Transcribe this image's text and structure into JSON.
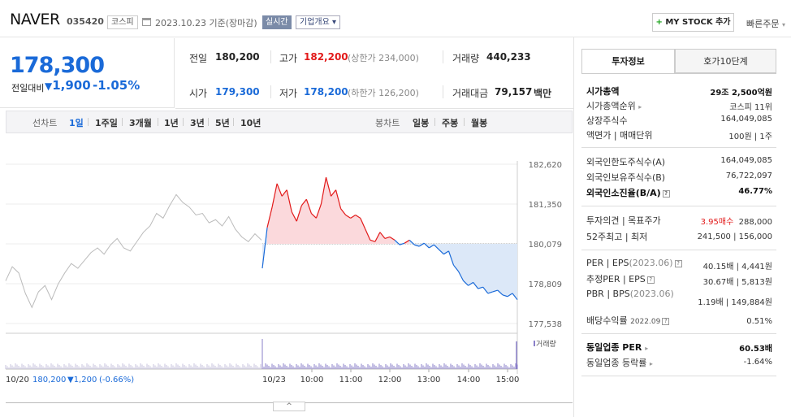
{
  "header": {
    "stock_name": "NAVER",
    "stock_code": "035420",
    "market": "코스피",
    "date_text": "2023.10.23  기준(장마감)",
    "realtime_label": "실시간",
    "overview_label": "기업개요",
    "overview_caret": "▾",
    "mystock_plus": "+",
    "mystock_label": "MY STOCK 추가",
    "quick_order": "빠른주문",
    "quick_order_caret": "▾"
  },
  "quote": {
    "price": "178,300",
    "change_label": "전일대비",
    "change_arrow": "▼",
    "change_amount": "1,900",
    "change_pct": "-1.05%",
    "prev_close_label": "전일",
    "prev_close": "180,200",
    "high_label": "고가",
    "high": "182,200",
    "upper_limit": "(상한가 234,000)",
    "volume_label": "거래량",
    "volume": "440,233",
    "open_label": "시가",
    "open": "179,300",
    "low_label": "저가",
    "low": "178,200",
    "lower_limit": "(하한가 126,200)",
    "amount_label": "거래대금",
    "amount": "79,157",
    "amount_unit": "백만"
  },
  "period_bar": {
    "line_label": "선차트",
    "periods": [
      "1일",
      "1주일",
      "3개월",
      "1년",
      "3년",
      "5년",
      "10년"
    ],
    "active_period": "1일",
    "candle_label": "봉차트",
    "candle_periods": [
      "일봉",
      "주봉",
      "월봉"
    ]
  },
  "chart_data": {
    "type": "line",
    "y_ticks": [
      "182,620",
      "181,350",
      "180,079",
      "178,809",
      "177,538"
    ],
    "ylim": [
      177538,
      182620
    ],
    "baseline": 180079,
    "x_ticks": [
      "10/23",
      "10:00",
      "11:00",
      "12:00",
      "13:00",
      "14:00",
      "15:00"
    ],
    "volume_label": "거래량",
    "prev_day_summary": {
      "date": "10/20",
      "price": "180,200",
      "change": "▼1,200",
      "pct": "(-0.66%)"
    },
    "prev_day_series": [
      178900,
      179350,
      179150,
      178500,
      178050,
      178550,
      178750,
      178300,
      178800,
      179150,
      179450,
      179300,
      179550,
      179800,
      179950,
      179750,
      180050,
      180250,
      179950,
      179850,
      180150,
      180450,
      180650,
      181050,
      180900,
      181300,
      181650,
      181400,
      181250,
      181000,
      181050,
      180750,
      180850,
      180650,
      180950,
      180550,
      180300,
      180150,
      180400,
      180200
    ],
    "today_series": [
      179300,
      180600,
      181250,
      182000,
      181600,
      181800,
      181100,
      180800,
      181300,
      181500,
      181050,
      180900,
      181350,
      182200,
      181600,
      181800,
      181200,
      181000,
      180900,
      181000,
      180900,
      180550,
      180200,
      180150,
      180450,
      180250,
      180300,
      180200,
      180050,
      180100,
      180200,
      180050,
      180000,
      180100,
      179950,
      180050,
      179900,
      179750,
      179850,
      179400,
      179200,
      178900,
      178750,
      178850,
      178650,
      178700,
      178500,
      178550,
      178600,
      178450,
      178400,
      178500,
      178300
    ]
  },
  "right_panel": {
    "tab_invest": "투자정보",
    "tab_orderbook": "호가10단계",
    "rows": [
      {
        "label": "시가총액",
        "value": "29조 2,500억원"
      },
      {
        "label": "시가총액순위",
        "value": "코스피 11위"
      },
      {
        "label": "상장주식수",
        "value": "164,049,085"
      },
      {
        "label": "액면가 | 매매단위",
        "value": "100원 | 1주"
      },
      {
        "label": "외국인한도주식수(A)",
        "value": "164,049,085"
      },
      {
        "label": "외국인보유주식수(B)",
        "value": "76,722,097"
      },
      {
        "label": "외국인소진율(B/A)",
        "value": "46.77%"
      },
      {
        "label": "투자의견 | 목표주가",
        "value_a": "3.95매수",
        "value_b": "288,000"
      },
      {
        "label": "52주최고 | 최저",
        "value": "241,500 | 156,000"
      },
      {
        "label": "PER | EPS",
        "label_sub": "(2023.06)",
        "value": "40.15배 | 4,441원"
      },
      {
        "label": "추정PER | EPS",
        "value": "30.67배 | 5,813원"
      },
      {
        "label": "PBR | BPS",
        "label_sub": "(2023.06)",
        "value": "1.19배 | 149,884원"
      },
      {
        "label": "배당수익률",
        "label_sub": "2022.09",
        "value": "0.51%"
      },
      {
        "label": "동일업종 PER",
        "value": "60.53배"
      },
      {
        "label": "동일업종 등락률",
        "value": "-1.64%"
      }
    ],
    "help_icon": "?",
    "row_caret": "▸"
  },
  "collapse_icon": "^",
  "colors": {
    "up": "#e21a1a",
    "down": "#1a6ad8",
    "prev": "#bbbbbb",
    "up_fill": "#fbd9dc",
    "down_fill": "#dce8f8"
  }
}
